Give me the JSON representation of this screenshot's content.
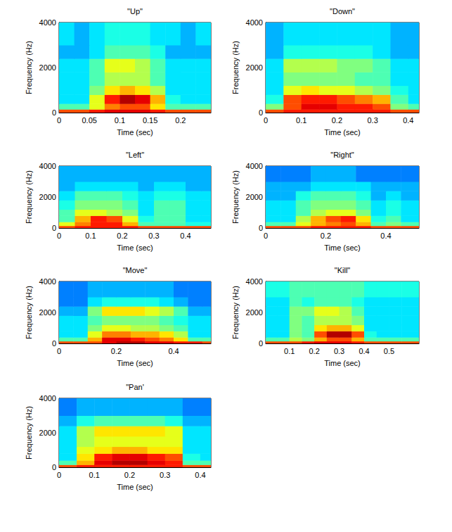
{
  "chart_data": [
    {
      "type": "heatmap",
      "title": "\"Up\"",
      "xlabel": "Time (sec)",
      "ylabel": "Frequency (Hz)",
      "xlim": [
        0,
        0.25
      ],
      "xticks": [
        0,
        0.05,
        0.1,
        0.15,
        0.2
      ],
      "ylim": [
        0,
        4000
      ],
      "yticks": [
        0,
        2000,
        4000
      ],
      "zlim": [
        0,
        10
      ],
      "time_bins": [
        0,
        0.025,
        0.05,
        0.075,
        0.1,
        0.125,
        0.15,
        0.175,
        0.2,
        0.225,
        0.25
      ],
      "freq_bins": [
        0,
        150,
        400,
        800,
        1200,
        1800,
        2400,
        3000,
        4000
      ],
      "cells": [
        [
          8,
          8,
          8.5,
          9,
          9,
          9,
          8.5,
          8,
          8,
          8
        ],
        [
          4.5,
          4.5,
          6,
          7.5,
          8,
          8,
          6.5,
          4.5,
          4.5,
          4.5
        ],
        [
          3.5,
          3.5,
          6,
          8.5,
          9.5,
          9,
          7,
          4,
          3.5,
          3.5
        ],
        [
          3.5,
          3.5,
          5,
          6.5,
          7,
          6.5,
          5.5,
          3.5,
          3.5,
          3.5
        ],
        [
          3.5,
          3.5,
          4.5,
          5.5,
          5.5,
          5.5,
          4.5,
          3.5,
          3.5,
          3.5
        ],
        [
          3.5,
          3.5,
          4.5,
          6,
          6,
          5.5,
          4.5,
          3.5,
          3.5,
          3.5
        ],
        [
          3,
          3,
          3.5,
          4.5,
          4.5,
          4.5,
          4,
          3,
          3,
          3
        ],
        [
          3.5,
          3,
          3.5,
          4,
          4,
          4,
          3.5,
          3.5,
          3,
          3.5
        ]
      ]
    },
    {
      "type": "heatmap",
      "title": "\"Down\"",
      "xlabel": "Time (sec)",
      "ylabel": "Frequency (Hz)",
      "xlim": [
        0,
        0.43
      ],
      "xticks": [
        0,
        0.1,
        0.2,
        0.3,
        0.4
      ],
      "ylim": [
        0,
        4000
      ],
      "yticks": [
        0,
        2000,
        4000
      ],
      "zlim": [
        0,
        10
      ],
      "time_bins": [
        0,
        0.05,
        0.1,
        0.15,
        0.2,
        0.25,
        0.3,
        0.35,
        0.4,
        0.43
      ],
      "freq_bins": [
        0,
        150,
        400,
        800,
        1200,
        1800,
        2400,
        3000,
        4000
      ],
      "cells": [
        [
          8,
          8.5,
          8.5,
          8.5,
          8.5,
          8.5,
          8.5,
          8,
          8
        ],
        [
          5,
          8,
          9,
          9,
          8.5,
          8.5,
          8,
          5,
          4.5
        ],
        [
          4,
          8,
          8.5,
          8.5,
          8,
          7.5,
          7,
          4.5,
          3.5
        ],
        [
          3.5,
          6,
          6.5,
          6,
          6,
          5.5,
          5,
          4,
          3.5
        ],
        [
          3.5,
          5,
          5,
          5,
          5,
          4.5,
          4.5,
          3.5,
          3.5
        ],
        [
          3.5,
          5.5,
          5.5,
          5.5,
          5,
          5,
          4.5,
          3.5,
          3.5
        ],
        [
          3,
          4,
          4,
          4,
          4,
          4,
          3.5,
          3,
          3
        ],
        [
          3,
          3.5,
          3.5,
          3.5,
          3.5,
          3.5,
          3.5,
          3,
          3
        ]
      ]
    },
    {
      "type": "heatmap",
      "title": "\"Left\"",
      "xlabel": "Time (sec)",
      "ylabel": "Frequency (Hz)",
      "xlim": [
        0,
        0.48
      ],
      "xticks": [
        0,
        0.1,
        0.2,
        0.3,
        0.4
      ],
      "ylim": [
        0,
        4000
      ],
      "yticks": [
        0,
        2000,
        4000
      ],
      "zlim": [
        0,
        10
      ],
      "time_bins": [
        0,
        0.05,
        0.1,
        0.15,
        0.2,
        0.25,
        0.3,
        0.35,
        0.4,
        0.45,
        0.48
      ],
      "freq_bins": [
        0,
        150,
        400,
        800,
        1200,
        1800,
        2400,
        3000,
        4000
      ],
      "cells": [
        [
          8,
          8.5,
          8.5,
          8.5,
          8.5,
          8,
          8,
          8,
          8,
          8
        ],
        [
          6,
          7.5,
          8.5,
          8.5,
          7,
          4.5,
          4.5,
          4.5,
          4,
          4
        ],
        [
          4.5,
          7,
          8.5,
          8,
          6,
          4,
          4.5,
          4.5,
          3.5,
          3.5
        ],
        [
          4.5,
          6,
          6,
          5.5,
          5,
          3.5,
          4.5,
          4.5,
          3.5,
          3.5
        ],
        [
          4,
          5,
          5,
          5,
          4.5,
          3.5,
          4.5,
          4.5,
          3.5,
          3.5
        ],
        [
          3.5,
          4.5,
          4.5,
          4.5,
          4,
          3.5,
          4,
          4,
          3.5,
          3.5
        ],
        [
          3,
          3.5,
          3.5,
          3.5,
          3.5,
          3,
          3.5,
          3.5,
          3,
          3
        ],
        [
          3,
          3,
          3,
          3,
          3,
          3,
          3,
          3,
          3,
          3
        ]
      ]
    },
    {
      "type": "heatmap",
      "title": "\"Right\"",
      "xlabel": "Time (sec)",
      "ylabel": "Frequency (Hz)",
      "xlim": [
        0,
        0.51
      ],
      "xticks": [
        0,
        0.2,
        0.4
      ],
      "ylim": [
        0,
        4000
      ],
      "yticks": [
        0,
        2000,
        4000
      ],
      "zlim": [
        0,
        10
      ],
      "time_bins": [
        0,
        0.05,
        0.1,
        0.15,
        0.2,
        0.25,
        0.3,
        0.35,
        0.4,
        0.45,
        0.51
      ],
      "freq_bins": [
        0,
        150,
        400,
        800,
        1200,
        1800,
        2400,
        3000,
        4000
      ],
      "cells": [
        [
          8,
          8,
          8,
          8.5,
          8.5,
          8.5,
          8.5,
          8,
          8,
          8
        ],
        [
          4.5,
          4.5,
          6,
          7,
          7.5,
          8,
          7,
          4.5,
          5,
          4.5
        ],
        [
          3.5,
          3.5,
          5.5,
          7,
          8,
          8.5,
          6.5,
          4,
          4.5,
          3.5
        ],
        [
          3.5,
          3.5,
          4.5,
          5.5,
          6,
          6,
          5,
          3.5,
          4,
          3.5
        ],
        [
          3.5,
          3.5,
          4.5,
          5,
          5,
          5,
          4.5,
          3.5,
          4,
          3.5
        ],
        [
          3,
          3,
          4,
          4.5,
          4.5,
          4.5,
          4,
          3,
          3.5,
          3
        ],
        [
          3,
          3,
          3,
          3.5,
          3.5,
          3.5,
          3.5,
          3,
          3,
          3
        ],
        [
          2.5,
          2.5,
          2.5,
          3,
          3,
          3,
          2.5,
          2.5,
          2.5,
          2.5
        ]
      ]
    },
    {
      "type": "heatmap",
      "title": "\"Move\"",
      "xlabel": "Time (sec)",
      "ylabel": "Frequency (Hz)",
      "xlim": [
        0,
        0.53
      ],
      "xticks": [
        0,
        0.2,
        0.4
      ],
      "ylim": [
        0,
        4000
      ],
      "yticks": [
        0,
        2000,
        4000
      ],
      "zlim": [
        0,
        10
      ],
      "time_bins": [
        0,
        0.05,
        0.1,
        0.15,
        0.2,
        0.25,
        0.3,
        0.35,
        0.4,
        0.45,
        0.5,
        0.53
      ],
      "freq_bins": [
        0,
        150,
        400,
        800,
        1200,
        1800,
        2400,
        3000,
        4000
      ],
      "cells": [
        [
          8,
          8,
          8,
          9,
          9.5,
          9.5,
          9,
          9,
          8.5,
          8.5,
          8
        ],
        [
          4.5,
          4.5,
          7,
          9,
          9,
          8.5,
          8,
          7.5,
          6.5,
          4.5,
          4.5
        ],
        [
          3.5,
          3.5,
          6,
          7.5,
          7.5,
          7,
          7,
          6.5,
          5.5,
          3.5,
          3.5
        ],
        [
          3.5,
          3.5,
          5,
          6,
          6,
          5.5,
          5.5,
          5,
          4.5,
          3.5,
          3.5
        ],
        [
          3.5,
          3.5,
          4.5,
          5,
          5,
          5,
          5,
          4.5,
          4,
          3.5,
          3.5
        ],
        [
          3,
          3,
          5,
          6.5,
          6.5,
          6.5,
          6,
          5.5,
          4.5,
          3,
          3
        ],
        [
          2.5,
          2.5,
          3.5,
          4,
          4,
          4,
          4,
          3.5,
          3,
          2.5,
          2.5
        ],
        [
          2.5,
          2.5,
          3,
          3,
          3,
          3,
          3,
          3,
          2.5,
          2.5,
          2.5
        ]
      ]
    },
    {
      "type": "heatmap",
      "title": "\"Kill\"",
      "xlabel": "Time (sec)",
      "ylabel": "Frequency (Hz)",
      "xlim": [
        0.005,
        0.62
      ],
      "xticks": [
        0.1,
        0.2,
        0.3,
        0.4,
        0.5
      ],
      "ylim": [
        0,
        4000
      ],
      "yticks": [
        0,
        2000,
        4000
      ],
      "zlim": [
        0,
        10
      ],
      "time_bins": [
        0.005,
        0.05,
        0.1,
        0.15,
        0.2,
        0.25,
        0.3,
        0.35,
        0.4,
        0.45,
        0.5,
        0.55,
        0.62
      ],
      "freq_bins": [
        0,
        150,
        400,
        800,
        1200,
        1800,
        2400,
        3000,
        4000
      ],
      "cells": [
        [
          8,
          8,
          8,
          8.5,
          9,
          9,
          9,
          8.5,
          8,
          8,
          8,
          8
        ],
        [
          4.5,
          4.5,
          5.5,
          5,
          7,
          8,
          8,
          7,
          4.5,
          4.5,
          4.5,
          4.5
        ],
        [
          3.5,
          3.5,
          5,
          4.5,
          8,
          9.5,
          9.5,
          8,
          4,
          3.5,
          3.5,
          3.5
        ],
        [
          3.5,
          3.5,
          5,
          4.5,
          6.5,
          7,
          7,
          6,
          3.5,
          3.5,
          3.5,
          3.5
        ],
        [
          3.5,
          3.5,
          5,
          4.5,
          5.5,
          5.5,
          5.5,
          5,
          3.5,
          3.5,
          3.5,
          3.5
        ],
        [
          3.5,
          3.5,
          5,
          5,
          6,
          6,
          5.5,
          4.5,
          3.5,
          3.5,
          3.5,
          3.5
        ],
        [
          3.5,
          3.5,
          4.5,
          4,
          4.5,
          4.5,
          4.5,
          4,
          3.5,
          3.5,
          3.5,
          3.5
        ],
        [
          4,
          4,
          4.5,
          4.5,
          4.5,
          4.5,
          4.5,
          4.5,
          4,
          4,
          4,
          4
        ]
      ]
    },
    {
      "type": "heatmap",
      "title": "\"Pan'",
      "xlabel": "Time (sec)",
      "ylabel": "Frequency (Hz)",
      "xlim": [
        0,
        0.43
      ],
      "xticks": [
        0,
        0.1,
        0.2,
        0.3,
        0.4
      ],
      "ylim": [
        0,
        4000
      ],
      "yticks": [
        0,
        2000,
        4000
      ],
      "zlim": [
        0,
        10
      ],
      "time_bins": [
        0,
        0.05,
        0.1,
        0.15,
        0.2,
        0.25,
        0.3,
        0.35,
        0.4,
        0.43
      ],
      "freq_bins": [
        0,
        150,
        400,
        800,
        1200,
        1800,
        2400,
        3000,
        4000
      ],
      "cells": [
        [
          8,
          8.5,
          8.5,
          8.5,
          8.5,
          8.5,
          8.5,
          8,
          8
        ],
        [
          4.5,
          7,
          9,
          9.5,
          9.5,
          9,
          8.5,
          4.5,
          4.5
        ],
        [
          3.5,
          6.5,
          8.5,
          9,
          9,
          8.5,
          8,
          4,
          3.5
        ],
        [
          3.5,
          6,
          6.5,
          7,
          7,
          6.5,
          6.5,
          3.5,
          3.5
        ],
        [
          3.5,
          5.5,
          6,
          6,
          6,
          6,
          6,
          3.5,
          3.5
        ],
        [
          3.5,
          5.5,
          6.5,
          6.5,
          6.5,
          6.5,
          6,
          3.5,
          3.5
        ],
        [
          3,
          4,
          4.5,
          4.5,
          4.5,
          4.5,
          4,
          3,
          3
        ],
        [
          2.5,
          3,
          3,
          3,
          3,
          3,
          3,
          2.5,
          2.5
        ]
      ]
    }
  ]
}
